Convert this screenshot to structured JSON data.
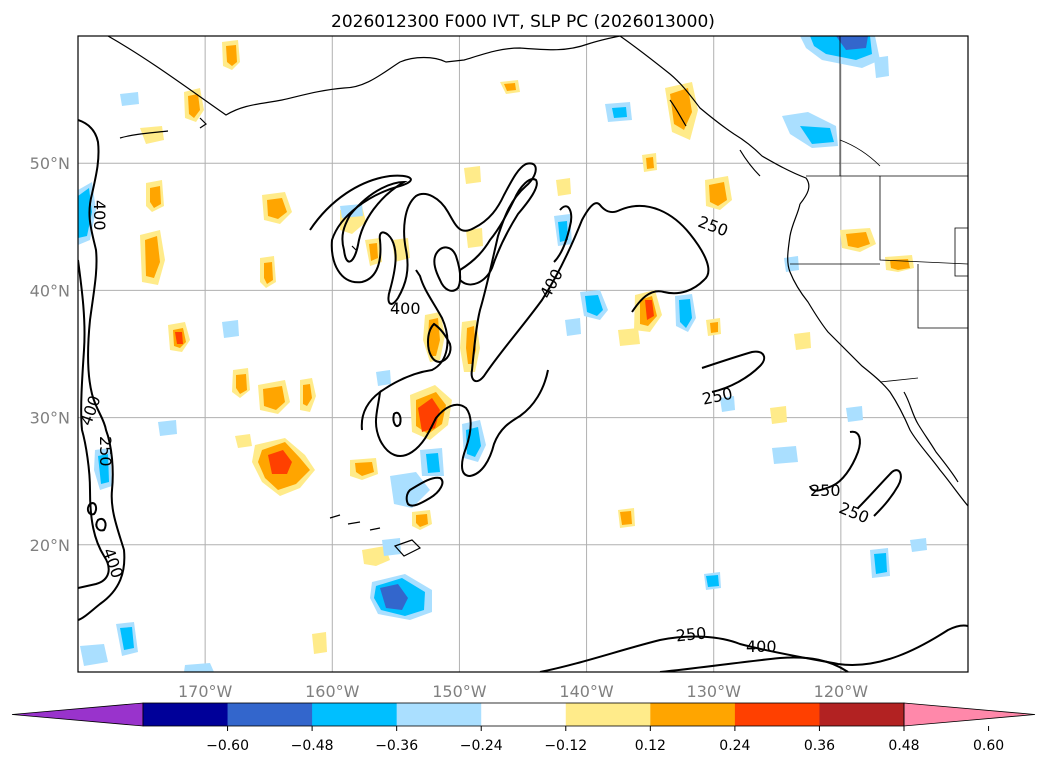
{
  "title": "2026012300 F000 IVT, SLP PC (2026013000)",
  "map": {
    "lon_range": [
      -180,
      -110
    ],
    "lat_range": [
      10,
      60
    ],
    "grid": true,
    "lon_ticks": [
      "170°W",
      "160°W",
      "150°W",
      "140°W",
      "130°W",
      "120°W"
    ],
    "lat_ticks": [
      "20°N",
      "30°N",
      "40°N",
      "50°N"
    ]
  },
  "colorbar": {
    "levels": [
      "−0.60",
      "−0.48",
      "−0.36",
      "−0.24",
      "−0.12",
      "0.12",
      "0.24",
      "0.36",
      "0.48",
      "0.60"
    ],
    "colors": [
      "#9933cc",
      "#000099",
      "#3366cc",
      "#00bfff",
      "#aadfff",
      "#ffffff",
      "#ffeb8a",
      "#ffa500",
      "#ff4000",
      "#b22222",
      "#ff88aa"
    ],
    "extend": "both"
  },
  "contour_labels": [
    "400",
    "400",
    "250",
    "250",
    "250",
    "400",
    "400",
    "250",
    "250",
    "250",
    "400"
  ],
  "colors": {
    "ivt_contour": "#000000",
    "grid": "#b0b0b0",
    "tick_text": "#808080"
  }
}
